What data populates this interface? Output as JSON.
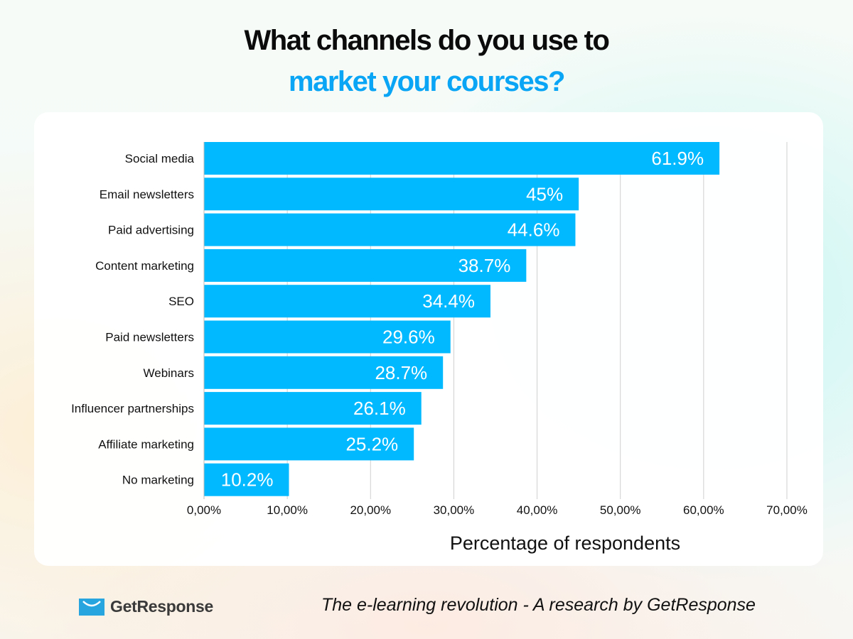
{
  "colors": {
    "bar": "#00B9FF",
    "title_accent": "#0AA6F5",
    "grid": "#cfcfcf"
  },
  "header": {
    "title_line1": "What channels do you use to",
    "title_line2": "market your courses?"
  },
  "chart_data": {
    "type": "bar",
    "orientation": "horizontal",
    "categories": [
      "Social media",
      "Email newsletters",
      "Paid advertising",
      "Content marketing",
      "SEO",
      "Paid newsletters",
      "Webinars",
      "Influencer partnerships",
      "Affiliate marketing",
      "No marketing"
    ],
    "values": [
      61.9,
      45,
      44.6,
      38.7,
      34.4,
      29.6,
      28.7,
      26.1,
      25.2,
      10.2
    ],
    "data_labels": [
      "61.9%",
      "45%",
      "44.6%",
      "38.7%",
      "34.4%",
      "29.6%",
      "28.7%",
      "26.1%",
      "25.2%",
      "10.2%"
    ],
    "xlabel": "Percentage of respondents",
    "xlim": [
      0,
      70
    ],
    "xticks": [
      0,
      10,
      20,
      30,
      40,
      50,
      60,
      70
    ],
    "xtick_labels": [
      "0,00%",
      "10,00%",
      "20,00%",
      "30,00%",
      "40,00%",
      "50,00%",
      "60,00%",
      "70,00%"
    ],
    "grid": "vertical"
  },
  "footer": {
    "logo_text": "GetResponse",
    "credit": "The e-learning revolution - A research by GetResponse"
  }
}
